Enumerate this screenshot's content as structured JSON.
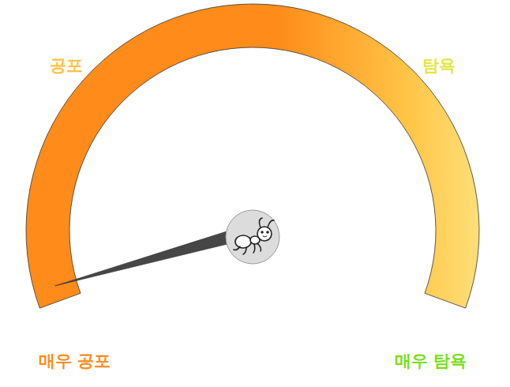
{
  "chart_data": {
    "type": "gauge",
    "value": 2,
    "ylim": [
      0,
      100
    ],
    "categories": [
      "매우 공포",
      "공포",
      "탐욕",
      "매우 탐욕"
    ],
    "colors": [
      "#ff8c1a",
      "#ffc445",
      "#e3e640",
      "#77dd11"
    ],
    "tick_labels": false
  }
}
